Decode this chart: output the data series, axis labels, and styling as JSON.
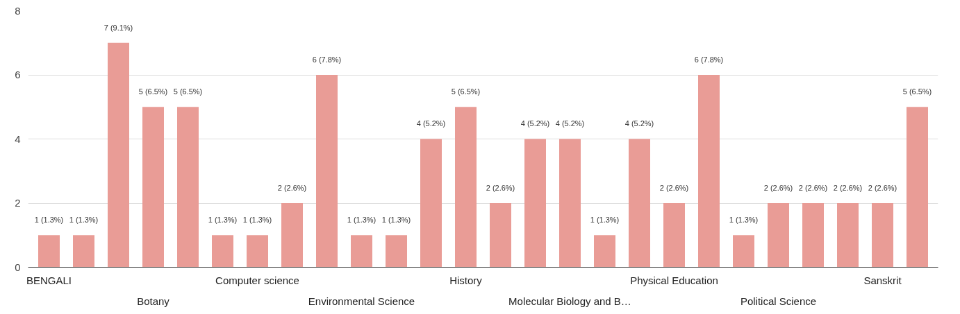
{
  "chart_data": {
    "type": "bar",
    "categories": [
      "BENGALI",
      null,
      null,
      "Botany",
      null,
      null,
      "Computer science",
      null,
      null,
      "Environmental Science",
      null,
      null,
      "History",
      null,
      null,
      "Molecular Biology and B…",
      null,
      null,
      "Physical Education",
      null,
      null,
      "Political Science",
      null,
      null,
      "Sanskrit",
      null
    ],
    "values": [
      1,
      1,
      7,
      5,
      5,
      1,
      1,
      2,
      6,
      1,
      1,
      4,
      5,
      2,
      4,
      4,
      1,
      4,
      2,
      6,
      1,
      2,
      2,
      2,
      2,
      5
    ],
    "value_labels": [
      "1 (1.3%)",
      "1 (1.3%)",
      "7 (9.1%)",
      "5 (6.5%)",
      "5 (6.5%)",
      "1 (1.3%)",
      "1 (1.3%)",
      "2 (2.6%)",
      "6 (7.8%)",
      "1 (1.3%)",
      "1 (1.3%)",
      "4 (5.2%)",
      "5 (6.5%)",
      "2 (2.6%)",
      "4 (5.2%)",
      "4 (5.2%)",
      "1 (1.3%)",
      "4 (5.2%)",
      "2 (2.6%)",
      "6 (7.8%)",
      "1 (1.3%)",
      "2 (2.6%)",
      "2 (2.6%)",
      "2 (2.6%)",
      "2 (2.6%)",
      "5 (6.5%)"
    ],
    "color": "#e99c96",
    "ylim": [
      0,
      8
    ],
    "yticks": [
      0,
      2,
      4,
      6,
      8
    ],
    "grid": "y"
  }
}
